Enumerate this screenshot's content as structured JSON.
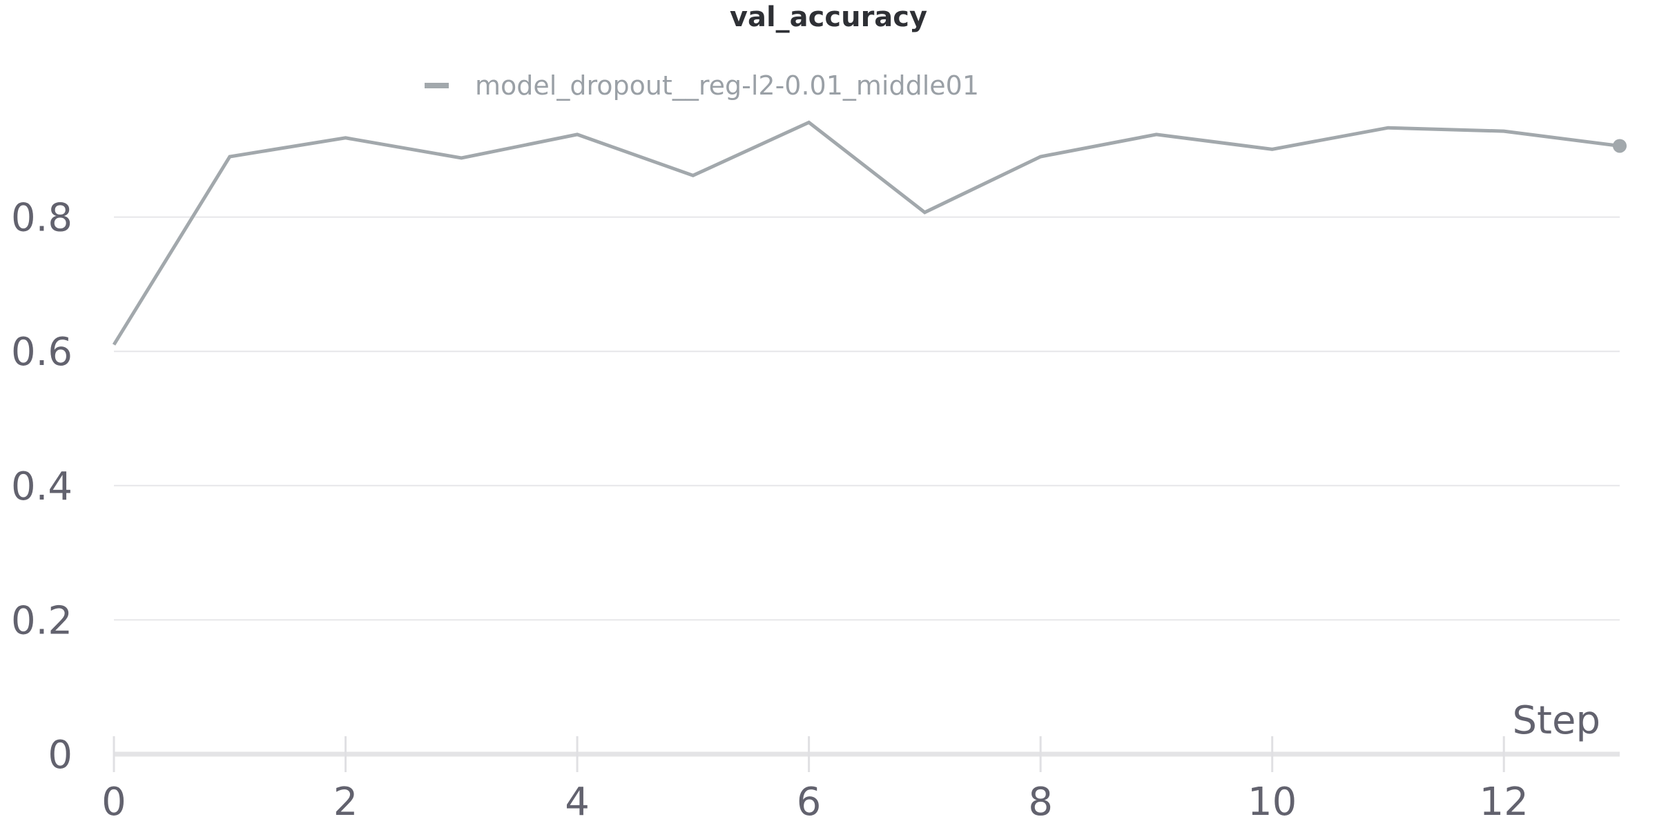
{
  "chart_data": {
    "type": "line",
    "title": "val_accuracy",
    "xlabel": "Step",
    "ylabel": "",
    "xlim": [
      0,
      13
    ],
    "ylim": [
      0,
      1
    ],
    "x_ticks": [
      0,
      2,
      4,
      6,
      8,
      10,
      12
    ],
    "y_ticks": [
      0,
      0.2,
      0.4,
      0.6,
      0.8
    ],
    "grid": true,
    "legend": "top-center",
    "series": [
      {
        "name": "model_dropout__reg-l2-0.01_middle01",
        "color": "#a2a8ac",
        "x": [
          0,
          1,
          2,
          3,
          4,
          5,
          6,
          7,
          8,
          9,
          10,
          11,
          12,
          13
        ],
        "y": [
          0.61,
          0.89,
          0.918,
          0.888,
          0.923,
          0.862,
          0.941,
          0.807,
          0.89,
          0.923,
          0.901,
          0.933,
          0.928,
          0.906
        ]
      }
    ]
  }
}
